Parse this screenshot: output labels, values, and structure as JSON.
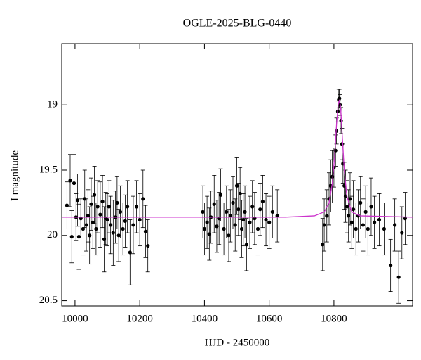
{
  "chart_data": {
    "type": "scatter",
    "title": "OGLE-2025-BLG-0440",
    "x_label": "HJD - 2450000",
    "y_label": "I magnitude",
    "xlim": [
      9959,
      11043
    ],
    "ylim": [
      18.53,
      20.54
    ],
    "y_inverted": true,
    "xticks": [
      10000,
      10200,
      10400,
      10600,
      10800
    ],
    "yticks": [
      19,
      19.5,
      20,
      20.5
    ],
    "series": [
      {
        "color": "#000000",
        "x": [
          9975,
          9985,
          9990,
          9997,
          10003,
          10008,
          10012,
          10018,
          10025,
          10030,
          10035,
          10040,
          10045,
          10050,
          10055,
          10060,
          10065,
          10070,
          10078,
          10085,
          10090,
          10095,
          10100,
          10105,
          10110,
          10118,
          10125,
          10130,
          10135,
          10140,
          10148,
          10155,
          10162,
          10170,
          10180,
          10190,
          10200,
          10210,
          10218,
          10225,
          10395,
          10400,
          10408,
          10415,
          10420,
          10430,
          10438,
          10445,
          10450,
          10460,
          10468,
          10475,
          10480,
          10488,
          10495,
          10500,
          10505,
          10510,
          10515,
          10520,
          10525,
          10530,
          10540,
          10548,
          10555,
          10565,
          10572,
          10580,
          10590,
          10600,
          10610,
          10625,
          10765,
          10770,
          10778,
          10785,
          10790,
          10795,
          10800,
          10805,
          10808,
          10812,
          10815,
          10817,
          10819,
          10822,
          10825,
          10828,
          10832,
          10836,
          10840,
          10845,
          10850,
          10855,
          10860,
          10868,
          10875,
          10882,
          10890,
          10898,
          10905,
          10915,
          10925,
          10940,
          10955,
          10975,
          10988,
          11000,
          11010,
          11020
        ],
        "values": [
          19.77,
          19.58,
          20.01,
          19.6,
          19.86,
          19.73,
          20.01,
          19.87,
          19.95,
          19.72,
          19.92,
          19.85,
          20.0,
          19.76,
          19.9,
          19.69,
          19.95,
          19.78,
          19.84,
          19.74,
          20.03,
          19.87,
          19.88,
          19.78,
          19.92,
          19.98,
          19.86,
          19.75,
          20.0,
          19.82,
          19.95,
          19.89,
          19.78,
          20.13,
          19.92,
          19.78,
          19.88,
          19.72,
          19.97,
          20.08,
          19.82,
          19.95,
          19.9,
          19.99,
          19.86,
          19.76,
          19.93,
          19.87,
          19.69,
          19.95,
          19.82,
          20.0,
          19.85,
          19.75,
          19.92,
          19.62,
          19.8,
          19.68,
          19.95,
          19.88,
          19.82,
          20.07,
          19.9,
          19.78,
          19.87,
          19.95,
          19.8,
          19.74,
          19.88,
          19.9,
          19.82,
          19.85,
          20.07,
          19.92,
          19.85,
          19.72,
          19.62,
          19.55,
          19.48,
          19.35,
          19.2,
          19.05,
          18.96,
          18.95,
          19.0,
          19.12,
          19.3,
          19.45,
          19.62,
          19.7,
          19.78,
          19.85,
          19.72,
          19.9,
          19.8,
          19.95,
          19.85,
          19.75,
          19.92,
          19.82,
          19.95,
          19.78,
          19.9,
          19.88,
          19.95,
          20.23,
          19.92,
          20.32,
          19.98,
          19.87
        ],
        "errors": [
          0.18,
          0.2,
          0.2,
          0.22,
          0.18,
          0.2,
          0.25,
          0.15,
          0.2,
          0.22,
          0.2,
          0.2,
          0.22,
          0.2,
          0.2,
          0.22,
          0.2,
          0.2,
          0.25,
          0.2,
          0.25,
          0.2,
          0.2,
          0.2,
          0.22,
          0.25,
          0.2,
          0.2,
          0.2,
          0.2,
          0.2,
          0.2,
          0.2,
          0.25,
          0.22,
          0.2,
          0.2,
          0.22,
          0.2,
          0.2,
          0.2,
          0.2,
          0.2,
          0.2,
          0.2,
          0.22,
          0.2,
          0.2,
          0.2,
          0.2,
          0.2,
          0.2,
          0.2,
          0.2,
          0.2,
          0.22,
          0.2,
          0.2,
          0.22,
          0.2,
          0.2,
          0.2,
          0.2,
          0.2,
          0.2,
          0.2,
          0.2,
          0.2,
          0.2,
          0.2,
          0.2,
          0.2,
          0.2,
          0.2,
          0.2,
          0.2,
          0.2,
          0.2,
          0.15,
          0.12,
          0.1,
          0.08,
          0.08,
          0.07,
          0.08,
          0.1,
          0.12,
          0.15,
          0.18,
          0.2,
          0.2,
          0.2,
          0.2,
          0.2,
          0.22,
          0.2,
          0.2,
          0.2,
          0.2,
          0.2,
          0.2,
          0.22,
          0.2,
          0.2,
          0.2,
          0.2,
          0.2,
          0.2,
          0.2,
          0.2
        ]
      },
      {
        "type": "line",
        "color": "#cc33cc",
        "x": [
          9960,
          10650,
          10740,
          10770,
          10785,
          10795,
          10802,
          10808,
          10813,
          10817,
          10821,
          10826,
          10832,
          10840,
          10855,
          10880,
          11043
        ],
        "values": [
          19.86,
          19.86,
          19.85,
          19.82,
          19.75,
          19.6,
          19.4,
          19.15,
          19.0,
          18.96,
          19.03,
          19.25,
          19.5,
          19.7,
          19.82,
          19.85,
          19.86
        ]
      }
    ]
  }
}
